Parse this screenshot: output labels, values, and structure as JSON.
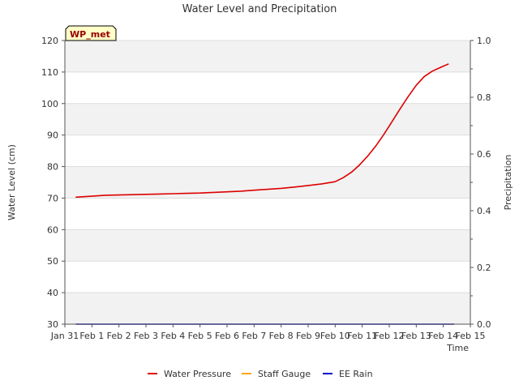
{
  "chart_data": {
    "type": "line",
    "title": "Water Level and Precipitation",
    "annotation": "WP_met",
    "xlabel": "Time",
    "ylabel": "Water Level (cm)",
    "y2label": "Precipitation",
    "x_ticks": [
      "Jan 31",
      "Feb 1",
      "Feb 2",
      "Feb 3",
      "Feb 4",
      "Feb 5",
      "Feb 6",
      "Feb 7",
      "Feb 8",
      "Feb 9",
      "Feb 10",
      "Feb 11",
      "Feb 12",
      "Feb 13",
      "Feb 14",
      "Feb 15"
    ],
    "xlim": [
      0,
      15
    ],
    "ylim": [
      30,
      120
    ],
    "y_ticks": [
      30,
      40,
      50,
      60,
      70,
      80,
      90,
      100,
      110,
      120
    ],
    "y2lim": [
      0,
      1.0
    ],
    "y2_ticks": [
      "0.0",
      "0.2",
      "0.4",
      "0.6",
      "0.8",
      "1.0"
    ],
    "y2_ticks_values": [
      0,
      0.2,
      0.4,
      0.6,
      0.8,
      1.0
    ],
    "y2_minor_ticks": [
      0.1,
      0.3,
      0.5,
      0.7,
      0.9
    ],
    "grid": "horizontal bands",
    "legend_position": "bottom",
    "series": [
      {
        "name": "Water Pressure",
        "color": "#dd0000",
        "axis": "left",
        "x": [
          0.4,
          1.0,
          1.5,
          2.0,
          2.5,
          3.0,
          3.5,
          4.0,
          4.5,
          5.0,
          5.5,
          6.0,
          6.5,
          7.0,
          7.5,
          8.0,
          8.5,
          9.0,
          9.5,
          10.0,
          10.3,
          10.6,
          10.9,
          11.2,
          11.5,
          11.8,
          12.1,
          12.4,
          12.7,
          13.0,
          13.3,
          13.6,
          13.9,
          14.2
        ],
        "y": [
          70.3,
          70.6,
          70.9,
          71.0,
          71.1,
          71.2,
          71.3,
          71.4,
          71.5,
          71.6,
          71.8,
          72.0,
          72.2,
          72.5,
          72.8,
          73.1,
          73.5,
          74.0,
          74.5,
          75.2,
          76.5,
          78.2,
          80.5,
          83.3,
          86.5,
          90.2,
          94.2,
          98.3,
          102.2,
          105.8,
          108.6,
          110.3,
          111.5,
          112.6
        ]
      },
      {
        "name": "Staff Gauge",
        "color": "#ffa500",
        "axis": "left",
        "x": [],
        "y": []
      },
      {
        "name": "EE Rain",
        "color": "#0000cc",
        "axis": "right",
        "x": [
          0.4,
          14.4
        ],
        "y": [
          0,
          0
        ]
      }
    ]
  }
}
